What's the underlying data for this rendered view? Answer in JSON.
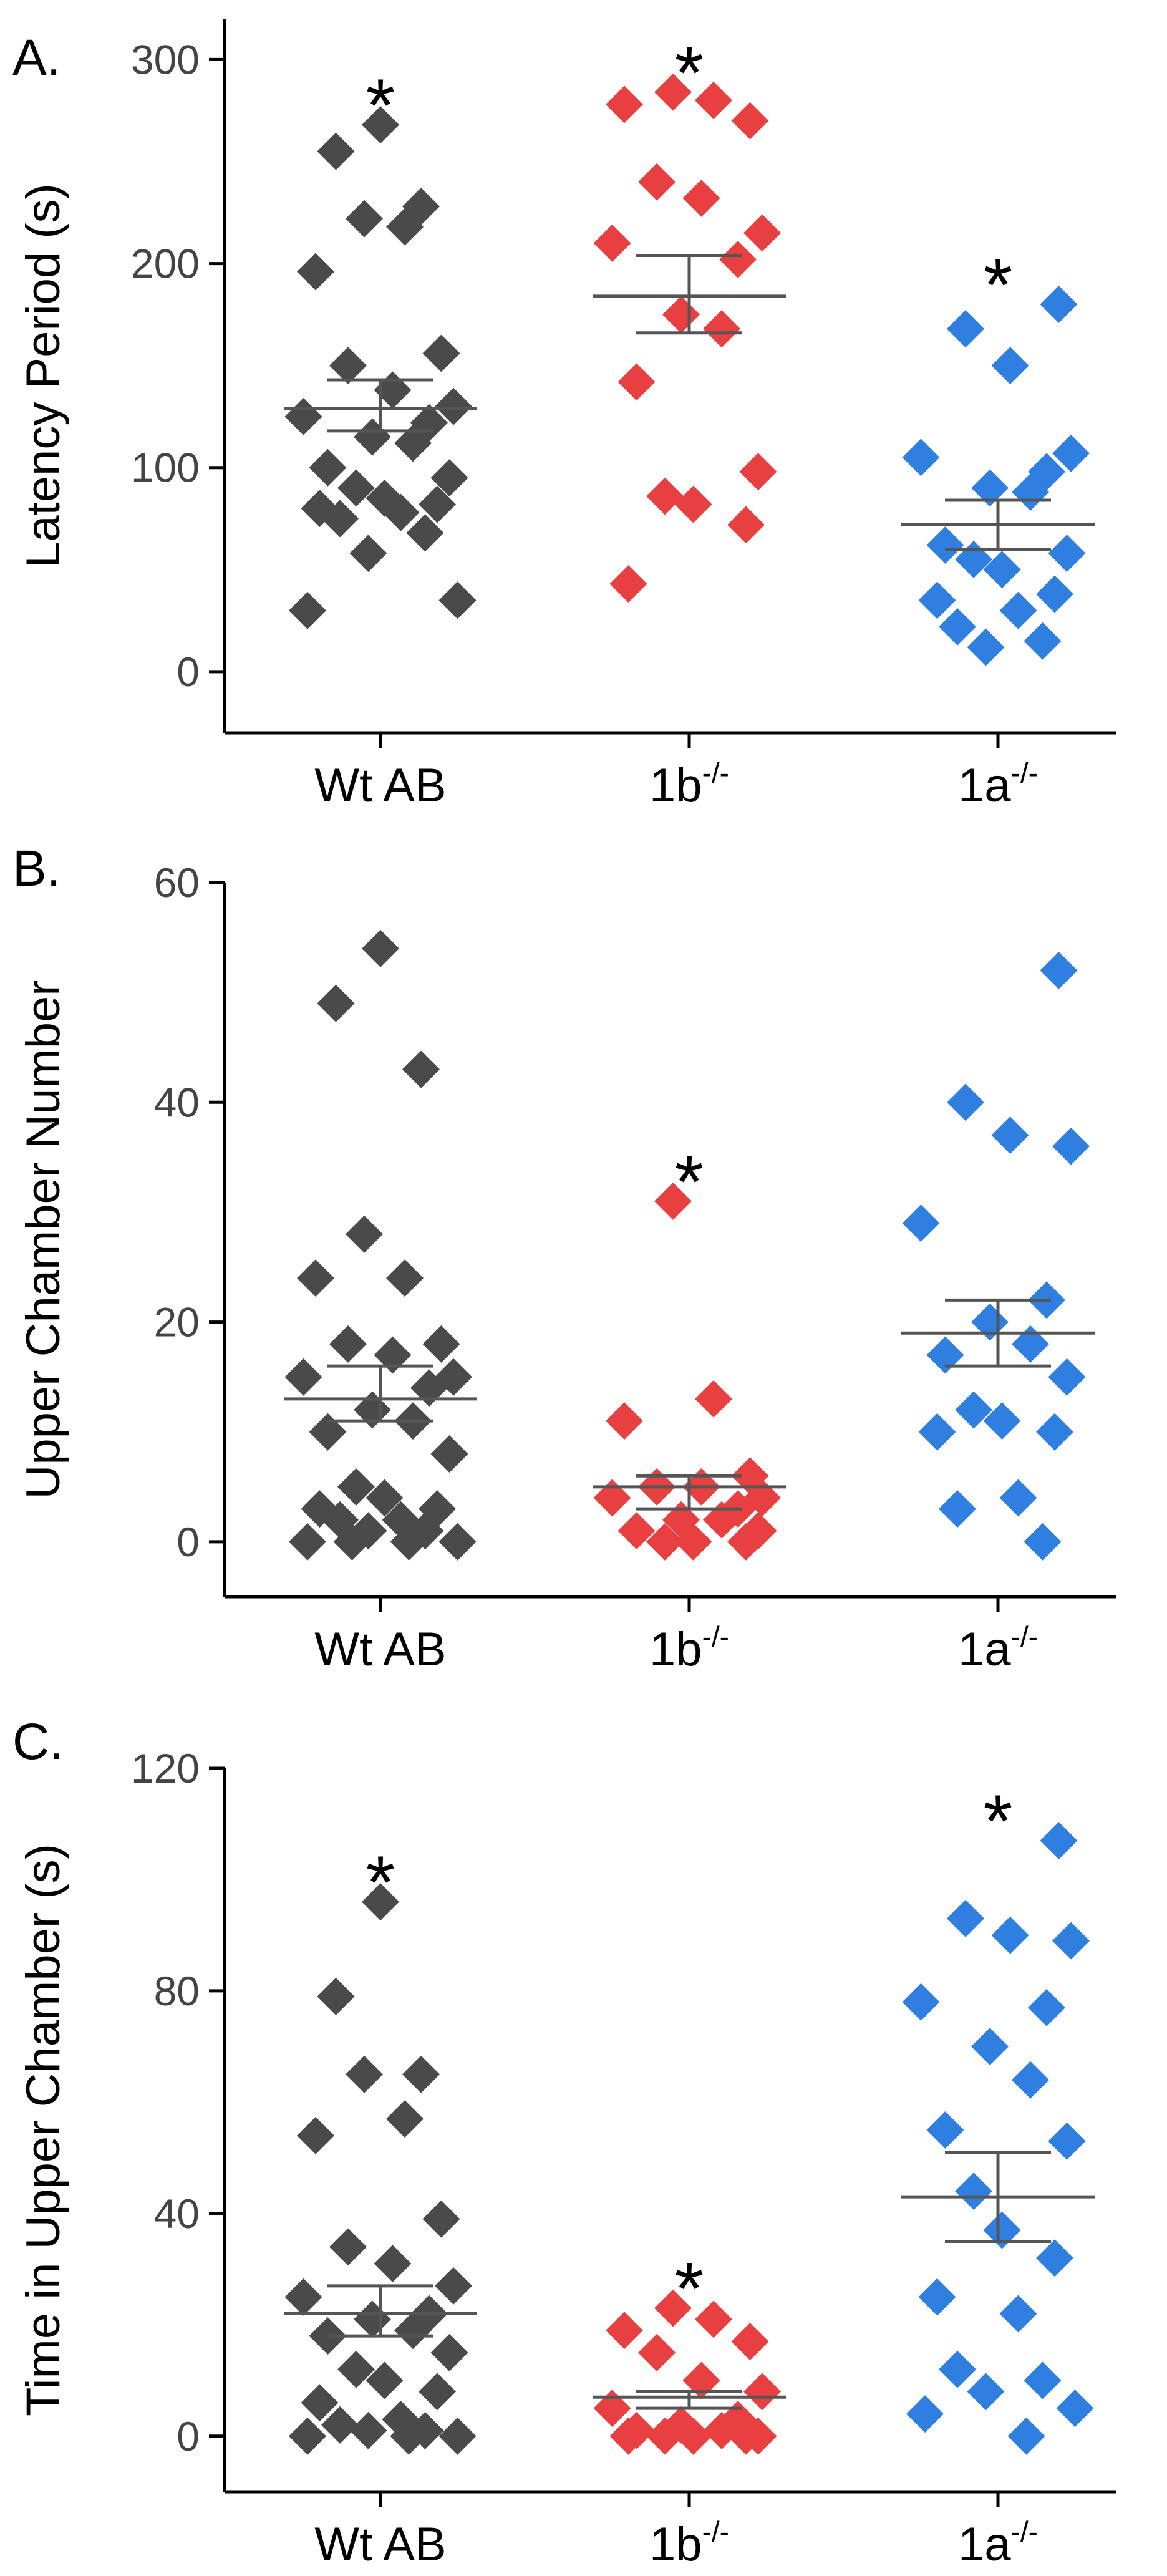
{
  "chart_data": [
    {
      "panel_label": "A.",
      "type": "scatter",
      "ylabel": "Latency Period (s)",
      "ylim": [
        -30,
        320
      ],
      "yticks": [
        0,
        100,
        200,
        300
      ],
      "groups": [
        {
          "name": "Wt AB",
          "sup": "",
          "color": "#4a4a4a",
          "mean": 129,
          "sem_low": 118,
          "sem_high": 143,
          "significant": true,
          "values": [
            268,
            255,
            228,
            222,
            218,
            196,
            156,
            150,
            138,
            130,
            125,
            122,
            115,
            112,
            100,
            95,
            90,
            85,
            82,
            80,
            78,
            75,
            68,
            58,
            35,
            30
          ]
        },
        {
          "name": "1b",
          "sup": "-/-",
          "color": "#e84040",
          "mean": 184,
          "sem_low": 166,
          "sem_high": 204,
          "significant": true,
          "values": [
            284,
            280,
            278,
            270,
            240,
            232,
            215,
            210,
            202,
            175,
            168,
            142,
            98,
            86,
            82,
            72,
            43
          ]
        },
        {
          "name": "1a",
          "sup": "-/-",
          "color": "#2f7fe0",
          "mean": 72,
          "sem_low": 60,
          "sem_high": 84,
          "significant": true,
          "values": [
            180,
            168,
            150,
            107,
            105,
            98,
            90,
            88,
            62,
            58,
            55,
            50,
            38,
            35,
            30,
            22,
            15,
            12
          ]
        }
      ]
    },
    {
      "panel_label": "B.",
      "type": "scatter",
      "ylabel": "Upper Chamber Number",
      "ylim": [
        -5,
        60
      ],
      "yticks": [
        0,
        20,
        40,
        60
      ],
      "groups": [
        {
          "name": "Wt AB",
          "sup": "",
          "color": "#4a4a4a",
          "mean": 13,
          "sem_low": 11,
          "sem_high": 16,
          "significant": false,
          "values": [
            54,
            49,
            43,
            28,
            24,
            24,
            18,
            18,
            17,
            15,
            15,
            14,
            12,
            11,
            10,
            8,
            5,
            4,
            3,
            3,
            2,
            2,
            1,
            1,
            0,
            0,
            0,
            0
          ]
        },
        {
          "name": "1b",
          "sup": "-/-",
          "color": "#e84040",
          "mean": 5,
          "sem_low": 3,
          "sem_high": 6,
          "significant": true,
          "values": [
            31,
            13,
            11,
            6,
            5,
            5,
            4,
            4,
            3,
            2,
            2,
            1,
            1,
            0,
            0,
            0
          ]
        },
        {
          "name": "1a",
          "sup": "-/-",
          "color": "#2f7fe0",
          "mean": 19,
          "sem_low": 16,
          "sem_high": 22,
          "significant": false,
          "values": [
            52,
            40,
            37,
            36,
            29,
            22,
            20,
            18,
            17,
            15,
            12,
            11,
            10,
            10,
            4,
            3,
            0
          ]
        }
      ]
    },
    {
      "panel_label": "C.",
      "type": "scatter",
      "ylabel": "Time in Upper Chamber (s)",
      "ylim": [
        -10,
        120
      ],
      "yticks": [
        0,
        40,
        80,
        120
      ],
      "groups": [
        {
          "name": "Wt AB",
          "sup": "",
          "color": "#4a4a4a",
          "mean": 22,
          "sem_low": 18,
          "sem_high": 27,
          "significant": true,
          "values": [
            96,
            79,
            65,
            65,
            57,
            54,
            39,
            34,
            31,
            27,
            25,
            22,
            21,
            19,
            18,
            15,
            12,
            10,
            8,
            6,
            3,
            2,
            1,
            1,
            0,
            0,
            0
          ]
        },
        {
          "name": "1b",
          "sup": "-/-",
          "color": "#e84040",
          "mean": 7,
          "sem_low": 5,
          "sem_high": 8,
          "significant": true,
          "values": [
            23,
            21,
            19,
            17,
            15,
            10,
            8,
            5,
            3,
            2,
            1,
            1,
            0,
            0,
            0,
            0,
            0
          ]
        },
        {
          "name": "1a",
          "sup": "-/-",
          "color": "#2f7fe0",
          "mean": 43,
          "sem_low": 35,
          "sem_high": 51,
          "significant": true,
          "values": [
            107,
            93,
            90,
            89,
            78,
            77,
            70,
            64,
            55,
            53,
            44,
            37,
            32,
            25,
            22,
            12,
            10,
            8,
            5,
            4,
            0
          ]
        }
      ]
    }
  ]
}
